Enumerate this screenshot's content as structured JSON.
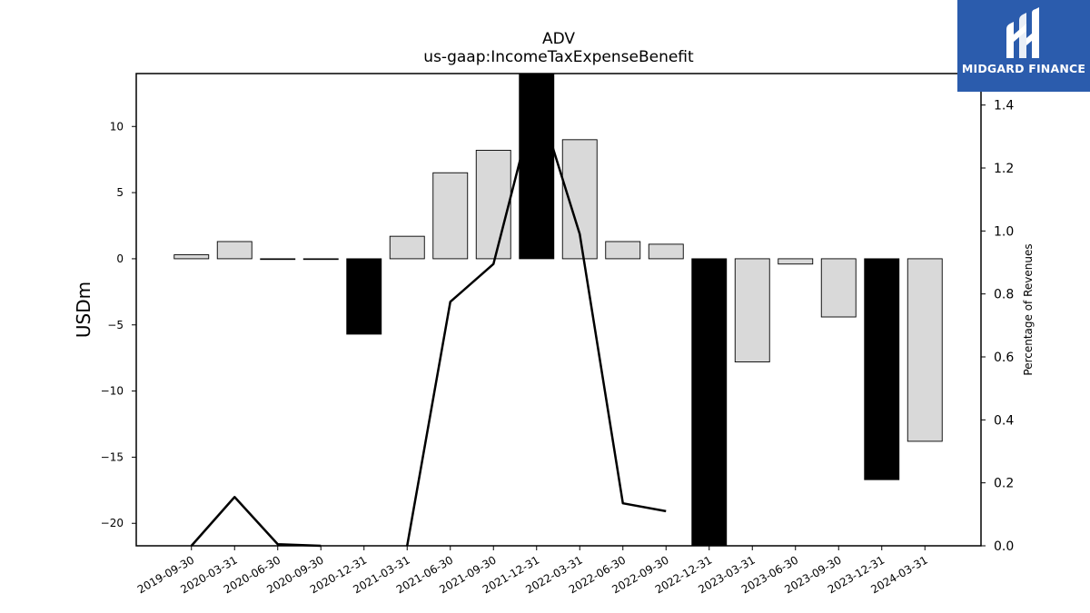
{
  "brand": {
    "name": "MIDGARD FINANCE",
    "logo_icon": "midgard-logo-icon",
    "background": "#2b5cad"
  },
  "chart_data": {
    "type": "bar",
    "title": "ADV",
    "subtitle": "us-gaap:IncomeTaxExpenseBenefit",
    "ylabel": "USDm",
    "y2label": "Percentage of Revenues",
    "categories": [
      "2019-09-30",
      "2020-03-31",
      "2020-06-30",
      "2020-09-30",
      "2020-12-31",
      "2021-03-31",
      "2021-06-30",
      "2021-09-30",
      "2021-12-31",
      "2022-03-31",
      "2022-06-30",
      "2022-09-30",
      "2022-12-31",
      "2023-03-31",
      "2023-06-30",
      "2023-09-30",
      "2023-12-31",
      "2024-03-31"
    ],
    "series": [
      {
        "values": [
          0.3,
          1.3,
          -0.05,
          -0.05,
          -5.7,
          1.7,
          6.5,
          8.2,
          14.5,
          9.0,
          1.3,
          1.1,
          -22.0,
          -7.8,
          -0.4,
          -4.4,
          -16.7,
          -13.8
        ],
        "highlight": [
          false,
          false,
          false,
          false,
          true,
          false,
          false,
          false,
          true,
          false,
          false,
          false,
          true,
          false,
          false,
          false,
          true,
          false
        ],
        "color": "#d9d9d9",
        "highlight_color": "#000000"
      },
      {
        "axis": "right",
        "type": "line",
        "color": "#000000",
        "values": [
          0.0,
          0.155,
          0.005,
          0.0,
          null,
          0.0,
          0.775,
          0.895,
          1.43,
          0.99,
          0.135,
          0.11,
          null,
          null,
          null,
          null,
          null,
          null
        ]
      }
    ],
    "ylim": [
      -21.7,
      14.0
    ],
    "yticks": [
      -20,
      -15,
      -10,
      -5,
      0,
      5,
      10
    ],
    "y2lim": [
      0.0,
      1.5
    ],
    "y2ticks": [
      0.0,
      0.2,
      0.4,
      0.6,
      0.8,
      1.0,
      1.2,
      1.4
    ],
    "grid": false,
    "legend": "none"
  }
}
